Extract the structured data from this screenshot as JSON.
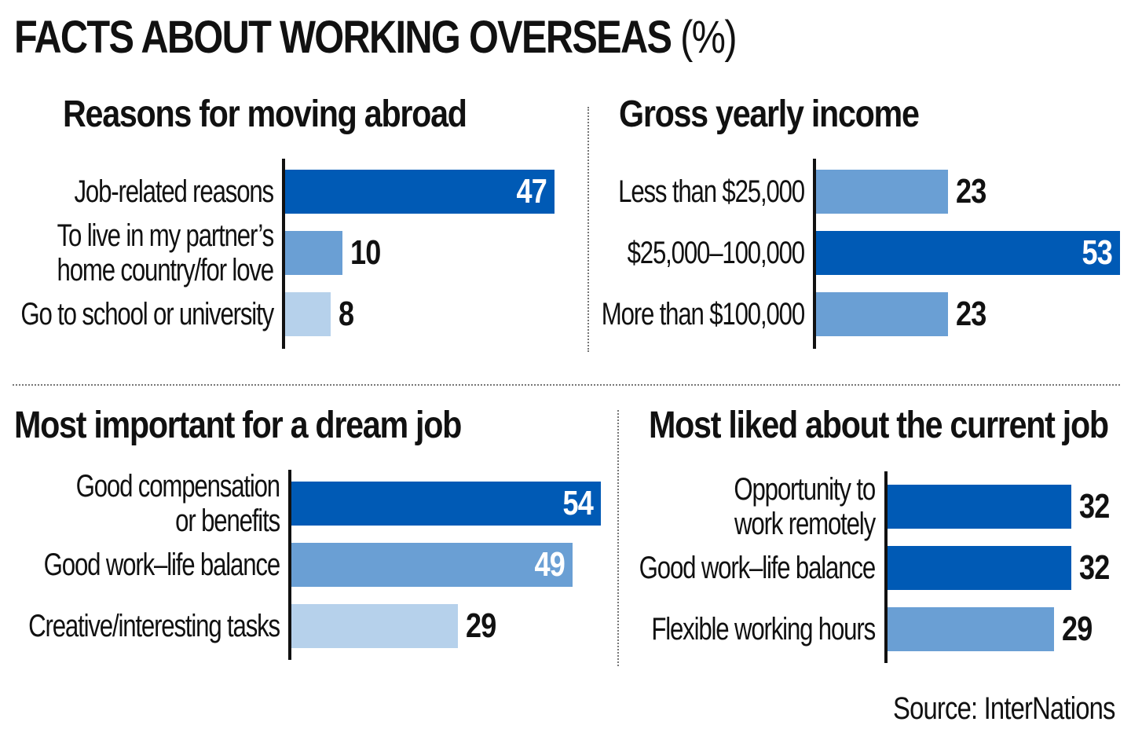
{
  "title": "FACTS ABOUT WORKING OVERSEAS",
  "title_unit": "(%)",
  "source": "Source: InterNations",
  "colors": {
    "dark": "#005ab5",
    "medium": "#6a9fd4",
    "light": "#b6d1eb"
  },
  "chart_data": [
    {
      "type": "bar",
      "orientation": "horizontal",
      "title": "Reasons for moving abroad",
      "categories": [
        "Job-related reasons",
        "To live in my partner’s\nhome country/for love",
        "Go to school or university"
      ],
      "values": [
        47,
        10,
        8
      ],
      "shades": [
        "dark",
        "medium",
        "light"
      ]
    },
    {
      "type": "bar",
      "orientation": "horizontal",
      "title": "Gross yearly income",
      "categories": [
        "Less than $25,000",
        "$25,000–100,000",
        "More than $100,000"
      ],
      "values": [
        23,
        53,
        23
      ],
      "shades": [
        "medium",
        "dark",
        "medium"
      ]
    },
    {
      "type": "bar",
      "orientation": "horizontal",
      "title": "Most important for a dream job",
      "categories": [
        "Good compensation\nor benefits",
        "Good work–life balance",
        "Creative/interesting tasks"
      ],
      "values": [
        54,
        49,
        29
      ],
      "shades": [
        "dark",
        "medium",
        "light"
      ]
    },
    {
      "type": "bar",
      "orientation": "horizontal",
      "title": "Most liked about the current job",
      "categories": [
        "Opportunity to\nwork remotely",
        "Good work–life balance",
        "Flexible working hours"
      ],
      "values": [
        32,
        32,
        29
      ],
      "shades": [
        "dark",
        "dark",
        "medium"
      ]
    }
  ]
}
